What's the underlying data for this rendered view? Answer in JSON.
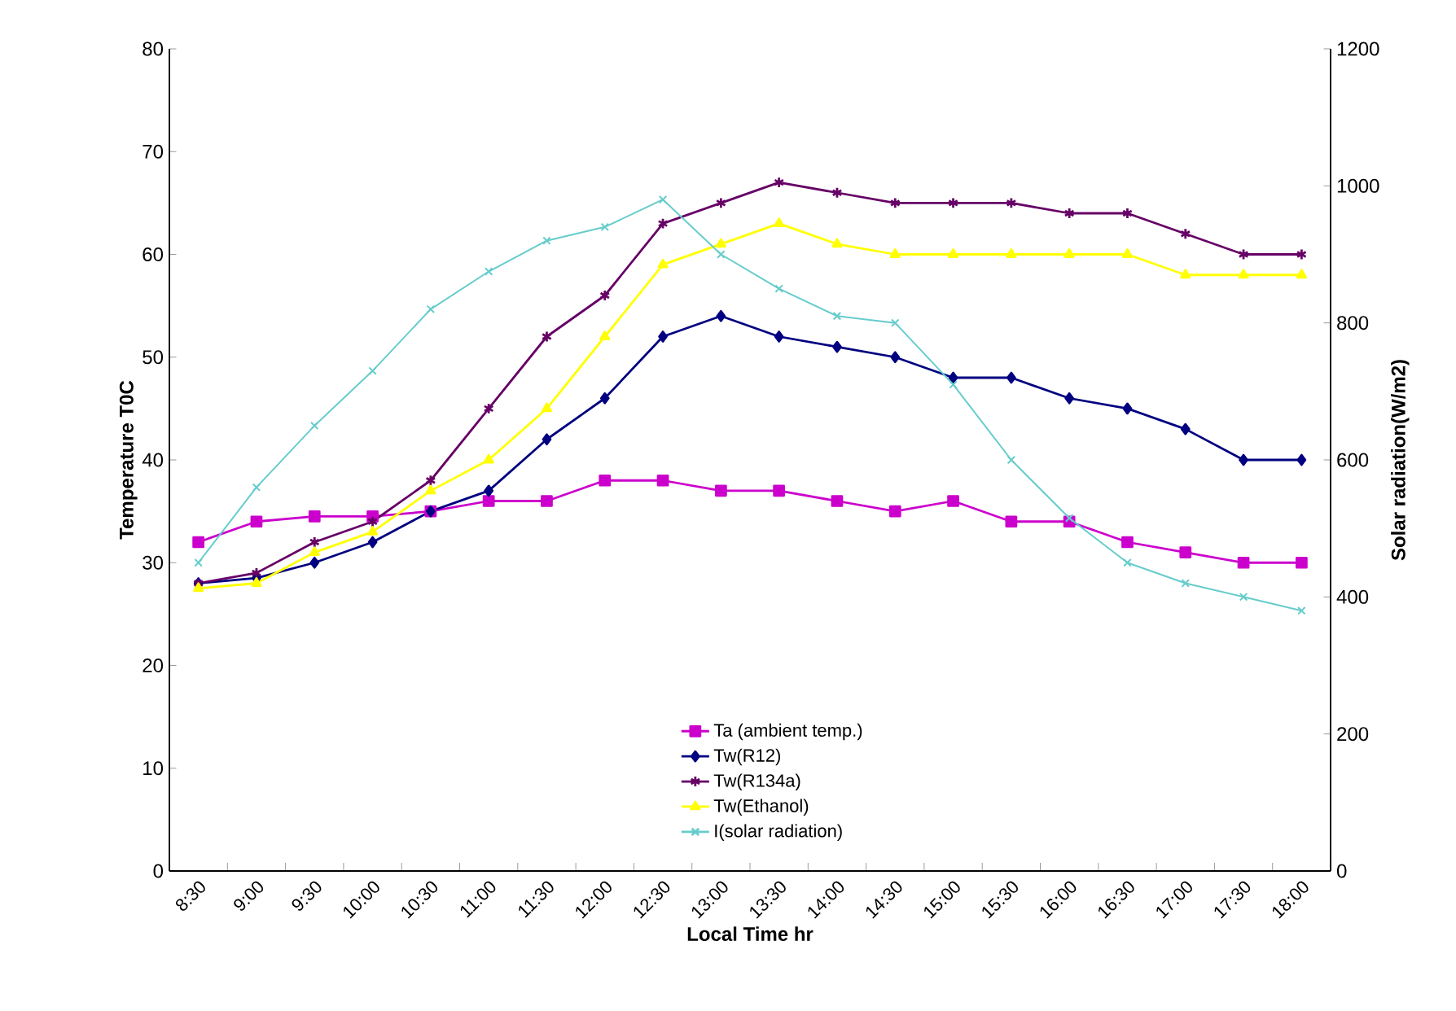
{
  "chart_data": {
    "type": "line",
    "xlabel": "Local Time hr",
    "ylabel": "Temperature T0C",
    "y2label": "Solar radiation(W/m2)",
    "categories": [
      "8:30",
      "9:00",
      "9:30",
      "10:00",
      "10:30",
      "11:00",
      "11:30",
      "12:00",
      "12:30",
      "13:00",
      "13:30",
      "14:00",
      "14:30",
      "15:00",
      "15:30",
      "16:00",
      "16:30",
      "17:00",
      "17:30",
      "18:00"
    ],
    "series": [
      {
        "name": "Ta (ambient temp.)",
        "color": "#cc00cc",
        "marker": "square",
        "values": [
          32,
          34,
          34.5,
          34.5,
          35,
          36,
          36,
          38,
          38,
          37,
          37,
          36,
          35,
          36,
          34,
          34,
          32,
          31,
          30,
          30
        ]
      },
      {
        "name": "Tw(R12)",
        "color": "#000080",
        "marker": "diamond",
        "values": [
          28,
          28.5,
          30,
          32,
          35,
          37,
          42,
          46,
          52,
          54,
          52,
          51,
          50,
          48,
          48,
          46,
          45,
          43,
          40,
          40
        ]
      },
      {
        "name": "Tw(R134a)",
        "color": "#660066",
        "marker": "cross",
        "values": [
          28,
          29,
          32,
          34,
          38,
          45,
          52,
          56,
          63,
          65,
          67,
          66,
          65,
          65,
          65,
          64,
          64,
          62,
          60,
          60
        ]
      },
      {
        "name": "Tw(Ethanol)",
        "color": "#ffff00",
        "marker": "triangle",
        "values": [
          27.5,
          28,
          31,
          33,
          37,
          40,
          45,
          52,
          59,
          61,
          63,
          61,
          60,
          60,
          60,
          60,
          60,
          58,
          58,
          58
        ]
      },
      {
        "name": "I(solar radiation)",
        "color": "#66cccc",
        "marker": "cross",
        "axis": "y2",
        "values": [
          450,
          560,
          650,
          730,
          820,
          875,
          920,
          940,
          980,
          900,
          850,
          810,
          800,
          710,
          600,
          515,
          450,
          420,
          400,
          380
        ]
      }
    ],
    "ylim": [
      0,
      80
    ],
    "yticks": [
      0,
      10,
      20,
      30,
      40,
      50,
      60,
      70,
      80
    ],
    "y2lim": [
      0,
      1200
    ],
    "y2ticks": [
      0,
      200,
      400,
      600,
      800,
      1000,
      1200
    ],
    "legend": "bottom",
    "grid": false,
    "line_style": "solid"
  }
}
